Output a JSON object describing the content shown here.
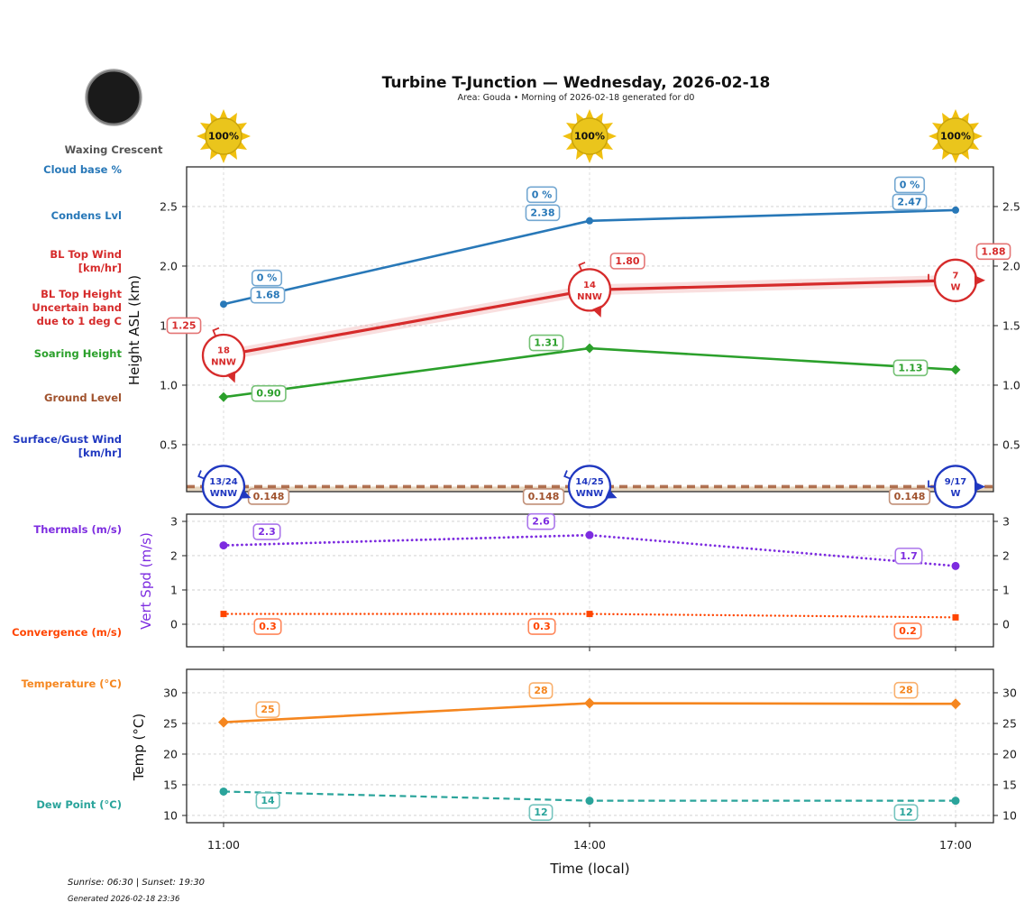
{
  "header": {
    "title": "Turbine T-Junction — Wednesday, 2026-02-18",
    "subtitle": "Area: Gouda • Morning of 2026-02-18 generated for d0"
  },
  "moon": {
    "phase_label": "Waxing Crescent"
  },
  "suns": {
    "labels": [
      "100%",
      "100%",
      "100%"
    ]
  },
  "sidebar": {
    "cloud_base": {
      "label": "Cloud base %"
    },
    "condens": {
      "label": "Condens Lvl"
    },
    "bl_top_wind": {
      "lines": [
        "BL Top Wind",
        "[km/hr]"
      ]
    },
    "bl_top_height": {
      "lines": [
        "BL Top Height",
        "Uncertain band",
        "due to 1 deg C"
      ]
    },
    "soaring": {
      "label": "Soaring Height"
    },
    "ground": {
      "label": "Ground Level"
    },
    "surface_wind": {
      "lines": [
        "Surface/Gust Wind",
        "[km/hr]"
      ]
    },
    "thermals": {
      "label": "Thermals (m/s)"
    },
    "convergence": {
      "label": "Convergence (m/s)"
    },
    "temperature": {
      "label": "Temperature (°C)"
    },
    "dew": {
      "label": "Dew Point (°C)"
    }
  },
  "footer": {
    "sunrise_sunset": "Sunrise: 06:30 | Sunset: 19:30",
    "generated": "Generated 2026-02-18 23:36"
  },
  "colors": {
    "condens_blue": "#2878b8",
    "bl_red": "#d62b2b",
    "soaring_green": "#2ba02b",
    "ground_sienna": "#a0522d",
    "surface_blue": "#2038c0",
    "thermals_violet": "#7d2ce0",
    "convergence_orangered": "#ff4500",
    "temp_orange": "#f5861f",
    "dew_teal": "#2aa49b",
    "sun_gold": "#f0c010",
    "moon_dark": "#1a1a1a"
  },
  "chart_data": [
    {
      "type": "line",
      "ylabel": "Height ASL (km)",
      "ylim": [
        0.106,
        2.833
      ],
      "yticks": [
        0.5,
        1.0,
        1.5,
        2.0,
        2.5
      ],
      "ytick_labels": [
        "0.5",
        "1.0",
        "1.5",
        "2.0",
        "2.5"
      ],
      "x_hours": [
        11,
        14,
        17
      ],
      "series": [
        {
          "id": "condens",
          "name": "Condens Lvl",
          "color": "condens_blue",
          "values": [
            1.68,
            2.38,
            2.47
          ],
          "point_labels": [
            "1.68",
            "2.38",
            "2.47"
          ],
          "cloud_base_pct_labels": [
            "0 %",
            "0 %",
            "0 %"
          ]
        },
        {
          "id": "bl_top",
          "name": "BL Top Height",
          "color": "bl_red",
          "values": [
            1.25,
            1.8,
            1.88
          ],
          "point_labels": [
            "1.25",
            "1.80",
            "1.88"
          ],
          "band": 0.045,
          "wind": [
            {
              "label": "18",
              "dir": "NNW"
            },
            {
              "label": "14",
              "dir": "NNW"
            },
            {
              "label": "7",
              "dir": "W"
            }
          ]
        },
        {
          "id": "soaring",
          "name": "Soaring Height",
          "color": "soaring_green",
          "values": [
            0.9,
            1.31,
            1.13
          ],
          "point_labels": [
            "0.90",
            "1.31",
            "1.13"
          ]
        },
        {
          "id": "ground",
          "name": "Ground Level",
          "color": "ground_sienna",
          "constant": 0.148,
          "point_labels": [
            "0.148",
            "0.148",
            "0.148"
          ]
        }
      ],
      "surface_wind": {
        "name": "Surface/Gust Wind",
        "color": "surface_blue",
        "at": 0.148,
        "points": [
          {
            "label": "13/24",
            "dir": "WNW"
          },
          {
            "label": "14/25",
            "dir": "WNW"
          },
          {
            "label": "9/17",
            "dir": "W"
          }
        ]
      }
    },
    {
      "type": "line",
      "ylabel": "Vert Spd (m/s)",
      "ylim": [
        -0.658,
        3.21
      ],
      "yticks": [
        0,
        1,
        2,
        3
      ],
      "ytick_labels": [
        "0",
        "1",
        "2",
        "3"
      ],
      "x_hours": [
        11,
        14,
        17
      ],
      "series": [
        {
          "id": "thermals",
          "name": "Thermals (m/s)",
          "color": "thermals_violet",
          "values": [
            2.3,
            2.6,
            1.7
          ],
          "point_labels": [
            "2.3",
            "2.6",
            "1.7"
          ]
        },
        {
          "id": "convergence",
          "name": "Convergence (m/s)",
          "color": "convergence_orangered",
          "values": [
            0.3,
            0.3,
            0.2
          ],
          "point_labels": [
            "0.3",
            "0.3",
            "0.2"
          ]
        }
      ]
    },
    {
      "type": "line",
      "ylabel": "Temp (°C)",
      "xlabel": "Time (local)",
      "ylim": [
        8.82,
        33.82
      ],
      "yticks": [
        10,
        15,
        20,
        25,
        30
      ],
      "ytick_labels": [
        "10",
        "15",
        "20",
        "25",
        "30"
      ],
      "x_hours": [
        11,
        14,
        17
      ],
      "xticklabels": [
        "11:00",
        "14:00",
        "17:00"
      ],
      "series": [
        {
          "id": "temperature",
          "name": "Temperature (°C)",
          "color": "temp_orange",
          "values": [
            25,
            28,
            28
          ],
          "plot_values": [
            25.2,
            28.3,
            28.2
          ],
          "point_labels": [
            "25",
            "28",
            "28"
          ]
        },
        {
          "id": "dew",
          "name": "Dew Point (°C)",
          "color": "dew_teal",
          "values": [
            14,
            12,
            12
          ],
          "plot_values": [
            13.9,
            12.4,
            12.4
          ],
          "point_labels": [
            "14",
            "12",
            "12"
          ]
        }
      ]
    }
  ]
}
